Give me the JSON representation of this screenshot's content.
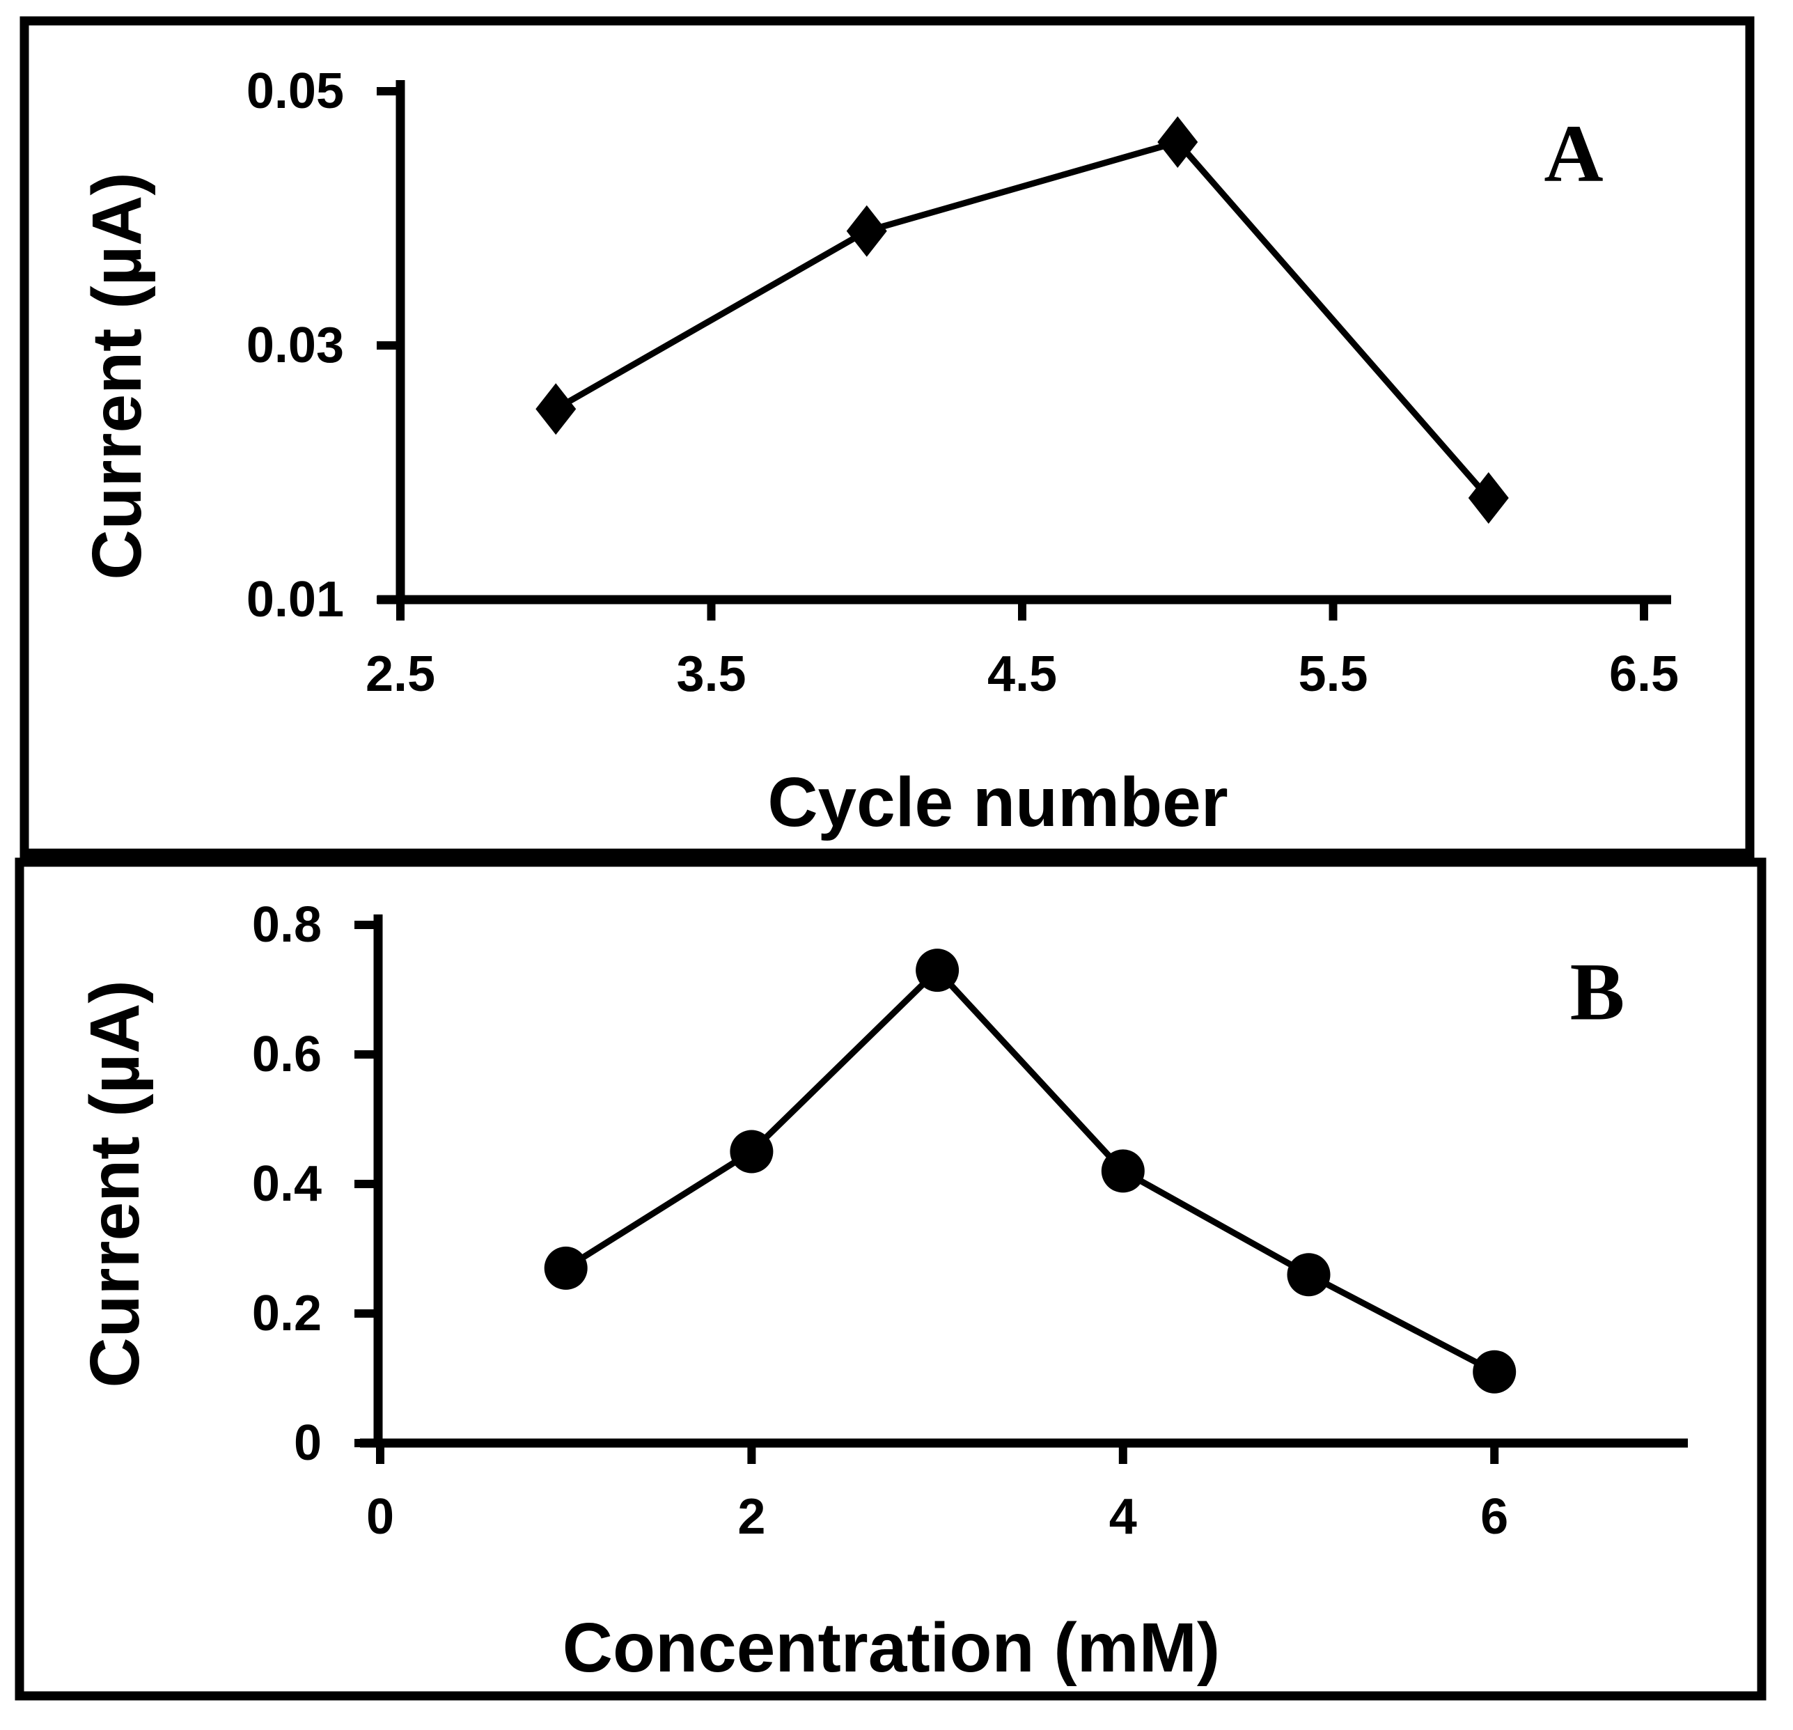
{
  "background": "#ffffff",
  "ink_color": "#000000",
  "panels": [
    {
      "corner_label": "A",
      "y_axis_title": "Current (µA)",
      "x_axis_title": "Cycle number"
    },
    {
      "corner_label": "B",
      "y_axis_title": "Current (µA)",
      "x_axis_title": "Concentration (mM)"
    }
  ],
  "chart_data": [
    {
      "type": "line",
      "panel_label": "A",
      "title": "",
      "xlabel": "Cycle number",
      "ylabel": "Current (µA)",
      "x": [
        3,
        4,
        5,
        6
      ],
      "y": [
        0.025,
        0.039,
        0.046,
        0.018
      ],
      "marker": "diamond",
      "line_color": "#000000",
      "marker_color": "#000000",
      "xlim": [
        2.5,
        6.5
      ],
      "ylim": [
        0.01,
        0.05
      ],
      "xticks": [
        2.5,
        3.5,
        4.5,
        5.5,
        6.5
      ],
      "xtick_labels": [
        "2.5",
        "3.5",
        "4.5",
        "5.5",
        "6.5"
      ],
      "yticks": [
        0.01,
        0.03,
        0.05
      ],
      "ytick_labels": [
        "0.01",
        "0.03",
        "0.05"
      ],
      "grid": false,
      "legend": "none"
    },
    {
      "type": "line",
      "panel_label": "B",
      "title": "",
      "xlabel": "Concentration (mM)",
      "ylabel": "Current (µA)",
      "x": [
        1,
        2,
        3,
        4,
        5,
        6
      ],
      "y": [
        0.27,
        0.45,
        0.73,
        0.42,
        0.26,
        0.11
      ],
      "marker": "circle",
      "line_color": "#000000",
      "marker_color": "#000000",
      "xlim": [
        0,
        7
      ],
      "ylim": [
        0,
        0.8
      ],
      "xticks": [
        0,
        2,
        4,
        6
      ],
      "xtick_labels": [
        "0",
        "2",
        "4",
        "6"
      ],
      "yticks": [
        0,
        0.2,
        0.4,
        0.6,
        0.8
      ],
      "ytick_labels": [
        "0",
        "0.2",
        "0.4",
        "0.6",
        "0.8"
      ],
      "grid": false,
      "legend": "none"
    }
  ]
}
